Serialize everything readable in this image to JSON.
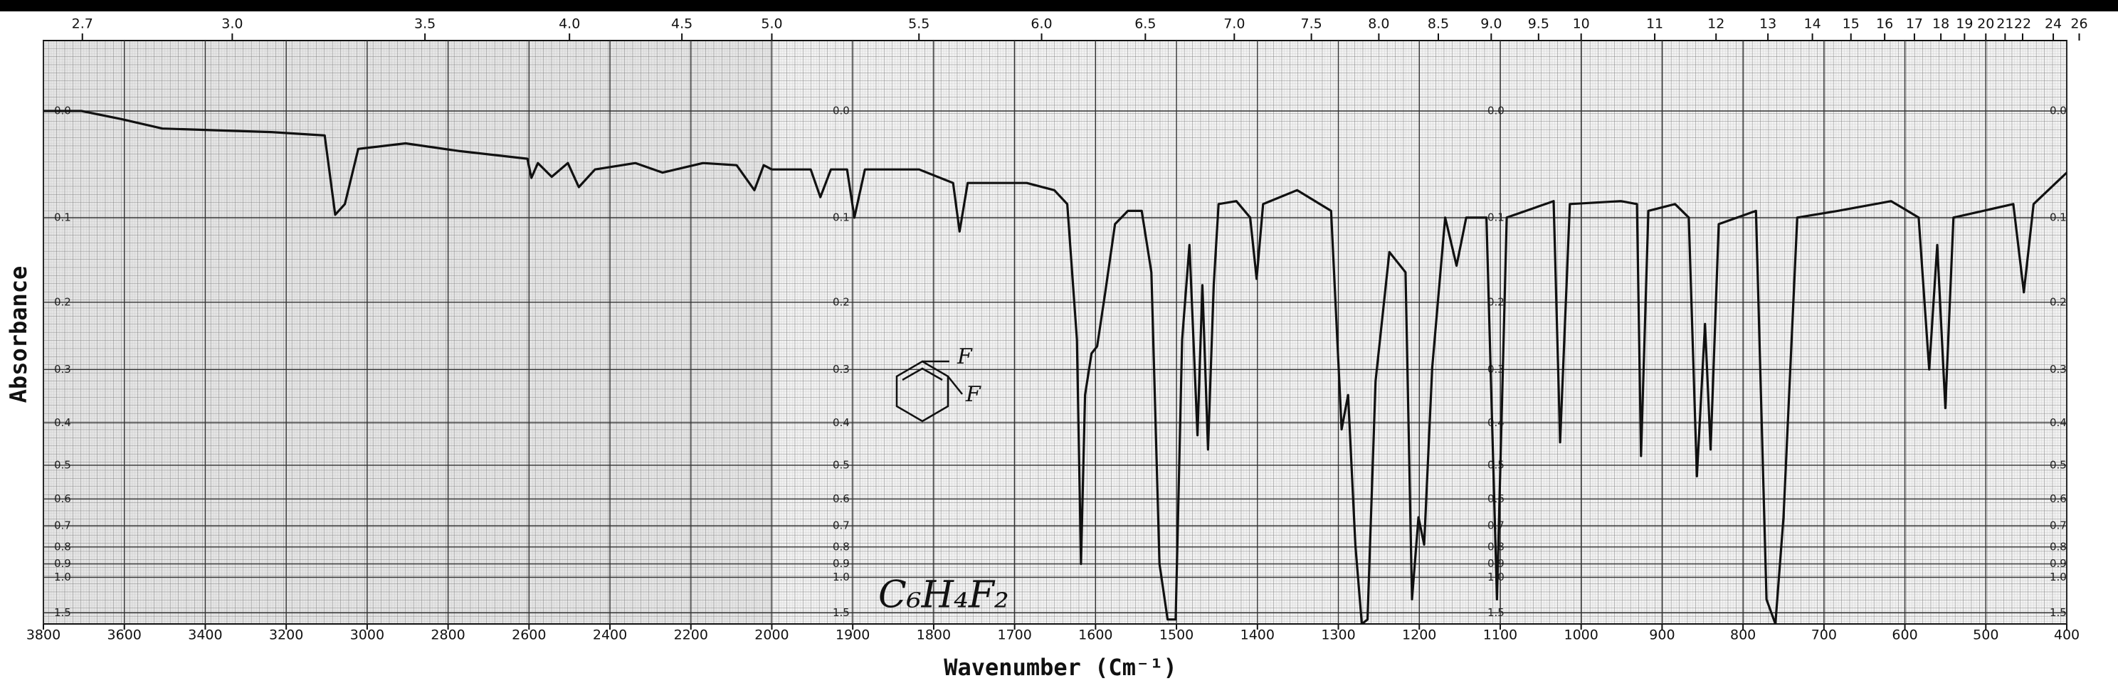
{
  "chart_data": {
    "type": "line",
    "y_axis_label": "Absorbance",
    "x_axis_label": "Wavenumber (Cm⁻¹)",
    "y_scale": "transmittance",
    "ylim": [
      0,
      2
    ],
    "yticks": [
      {
        "value": 0,
        "label": "0.0"
      },
      0.1,
      0.2,
      0.3,
      0.4,
      0.5,
      0.6,
      0.7,
      0.8,
      0.9,
      {
        "value": 1,
        "label": "1.0"
      },
      1.5
    ],
    "x_segments": [
      {
        "xlim": [
          3800,
          2000
        ]
      },
      {
        "xlim": [
          2000,
          400
        ]
      }
    ],
    "x_segment_scale": [
      1,
      2
    ],
    "xticks": [
      3800,
      3600,
      3400,
      3200,
      3000,
      2800,
      2600,
      2400,
      2200,
      2000,
      1900,
      1800,
      1700,
      1600,
      1500,
      1400,
      1300,
      1200,
      1100,
      1000,
      900,
      800,
      700,
      600,
      500,
      400
    ],
    "x2ticks": [
      2.7,
      {
        "value": 3,
        "label": "3.0"
      },
      3.5,
      {
        "value": 4,
        "label": "4.0"
      },
      4.5,
      {
        "value": 5,
        "label": "5.0"
      },
      5.5,
      {
        "value": 6,
        "label": "6.0"
      },
      6.5,
      {
        "value": 7,
        "label": "7.0"
      },
      7.5,
      {
        "value": 8,
        "label": "8.0"
      },
      8.5,
      {
        "value": 9,
        "label": "9.0"
      },
      9.5,
      10,
      11,
      12,
      13,
      14,
      15,
      16,
      17,
      18,
      19,
      20,
      21,
      22,
      24,
      26
    ],
    "grid": true,
    "color": "#111111",
    "x": [
      3800,
      3706,
      3606,
      3506,
      3239,
      3105,
      3079,
      3055,
      3022,
      2905,
      2771,
      2604,
      2594,
      2578,
      2544,
      2504,
      2477,
      2437,
      2337,
      2270,
      2170,
      2087,
      2043,
      2020,
      2000,
      1952,
      1940,
      1927,
      1907,
      1898,
      1885,
      1818,
      1776,
      1768,
      1758,
      1685,
      1651,
      1635,
      1623,
      1618,
      1613,
      1605,
      1598,
      1588,
      1576,
      1560,
      1543,
      1531,
      1521,
      1511,
      1501,
      1493,
      1484,
      1474,
      1468,
      1461,
      1454,
      1448,
      1426,
      1409,
      1401,
      1393,
      1351,
      1309,
      1296,
      1288,
      1279,
      1271,
      1264,
      1254,
      1237,
      1217,
      1209,
      1201,
      1194,
      1184,
      1168,
      1154,
      1142,
      1117,
      1104,
      1092,
      1034,
      1026,
      1014,
      951,
      931,
      926,
      917,
      884,
      867,
      857,
      847,
      840,
      830,
      784,
      771,
      760,
      750,
      733,
      683,
      617,
      583,
      570,
      560,
      550,
      540,
      466,
      453,
      441,
      400
    ],
    "values": [
      0,
      0,
      0.007,
      0.015,
      0.018,
      0.021,
      0.097,
      0.086,
      0.033,
      0.028,
      0.035,
      0.042,
      0.06,
      0.046,
      0.059,
      0.046,
      0.069,
      0.052,
      0.046,
      0.055,
      0.046,
      0.048,
      0.072,
      0.048,
      0.052,
      0.052,
      0.079,
      0.052,
      0.052,
      0.1,
      0.052,
      0.052,
      0.065,
      0.115,
      0.065,
      0.065,
      0.072,
      0.086,
      0.253,
      0.9,
      0.345,
      0.274,
      0.263,
      0.187,
      0.107,
      0.093,
      0.093,
      0.162,
      0.9,
      1.73,
      1.73,
      0.253,
      0.13,
      0.427,
      0.178,
      0.46,
      0.178,
      0.086,
      0.083,
      0.1,
      0.17,
      0.086,
      0.072,
      0.093,
      0.414,
      0.345,
      0.788,
      2.0,
      1.73,
      0.32,
      0.138,
      0.162,
      1.24,
      0.666,
      0.788,
      0.297,
      0.1,
      0.154,
      0.1,
      0.1,
      1.24,
      0.1,
      0.083,
      0.443,
      0.086,
      0.083,
      0.086,
      0.476,
      0.093,
      0.086,
      0.1,
      0.53,
      0.23,
      0.46,
      0.107,
      0.093,
      1.24,
      2.0,
      0.666,
      0.1,
      0.093,
      0.083,
      0.1,
      0.3,
      0.13,
      0.37,
      0.1,
      0.086,
      0.187,
      0.086,
      0.055
    ],
    "annotations": [
      "C₆H₄F₂"
    ],
    "structure_labels": [
      "F",
      "F"
    ]
  }
}
